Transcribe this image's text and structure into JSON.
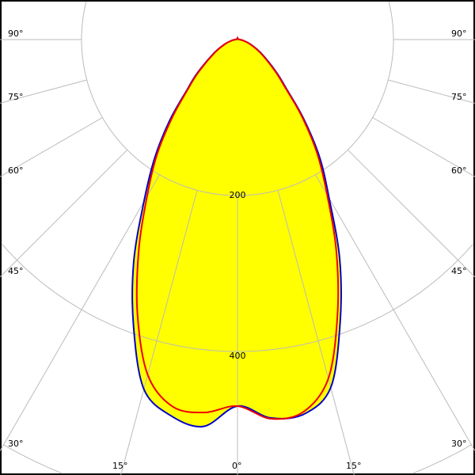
{
  "chart_data": {
    "type": "polar",
    "title": "",
    "radial_ticks": [
      200,
      400
    ],
    "radial_tick_labels": [
      "200",
      "400"
    ],
    "angle_ticks": [
      0,
      15,
      30,
      45,
      60,
      75,
      90
    ],
    "angle_tick_labels": {
      "left": [
        "90°",
        "75°",
        "60°",
        "45°",
        "30°"
      ],
      "bottom": [
        "15°",
        "0°",
        "15°"
      ],
      "right": [
        "90°",
        "75°",
        "60°",
        "45°",
        "30°"
      ]
    },
    "angles": [
      0,
      5,
      10,
      15,
      20,
      25,
      30,
      35,
      40,
      45,
      50,
      60,
      70,
      80,
      90,
      120,
      150,
      180
    ],
    "series": [
      {
        "color": "#0000cc",
        "right": [
          470,
          487,
          488,
          462,
          385,
          310,
          235,
          183,
          131,
          88,
          65,
          35,
          18,
          8,
          3,
          1,
          1,
          2
        ],
        "left": [
          470,
          498,
          490,
          464,
          390,
          315,
          240,
          185,
          135,
          92,
          68,
          35,
          18,
          8,
          3,
          1,
          1,
          2
        ]
      },
      {
        "color": "#ee0000",
        "right": [
          470,
          488,
          485,
          450,
          375,
          300,
          230,
          178,
          128,
          86,
          63,
          34,
          17,
          8,
          3,
          1,
          1,
          2
        ],
        "left": [
          470,
          480,
          478,
          445,
          375,
          300,
          232,
          180,
          130,
          90,
          66,
          34,
          17,
          8,
          3,
          1,
          1,
          2
        ]
      }
    ],
    "fill_color": "#ffff00",
    "grid": true
  }
}
